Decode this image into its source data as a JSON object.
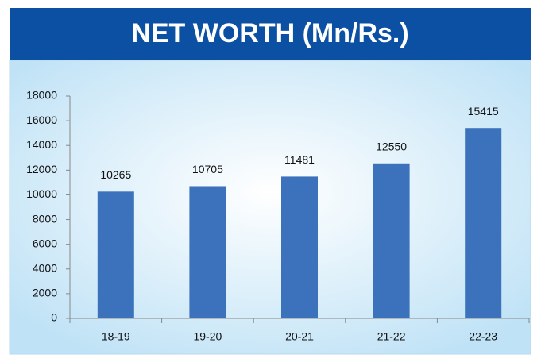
{
  "chart_data": {
    "type": "bar",
    "title": "NET WORTH (Mn/Rs.)",
    "categories": [
      "18-19",
      "19-20",
      "20-21",
      "21-22",
      "22-23"
    ],
    "values": [
      10265,
      10705,
      11481,
      12550,
      15415
    ],
    "color": "#3b72bb",
    "ylim": [
      0,
      18000
    ],
    "yticks": [
      0,
      2000,
      4000,
      6000,
      8000,
      10000,
      12000,
      14000,
      16000,
      18000
    ],
    "grid": false
  }
}
